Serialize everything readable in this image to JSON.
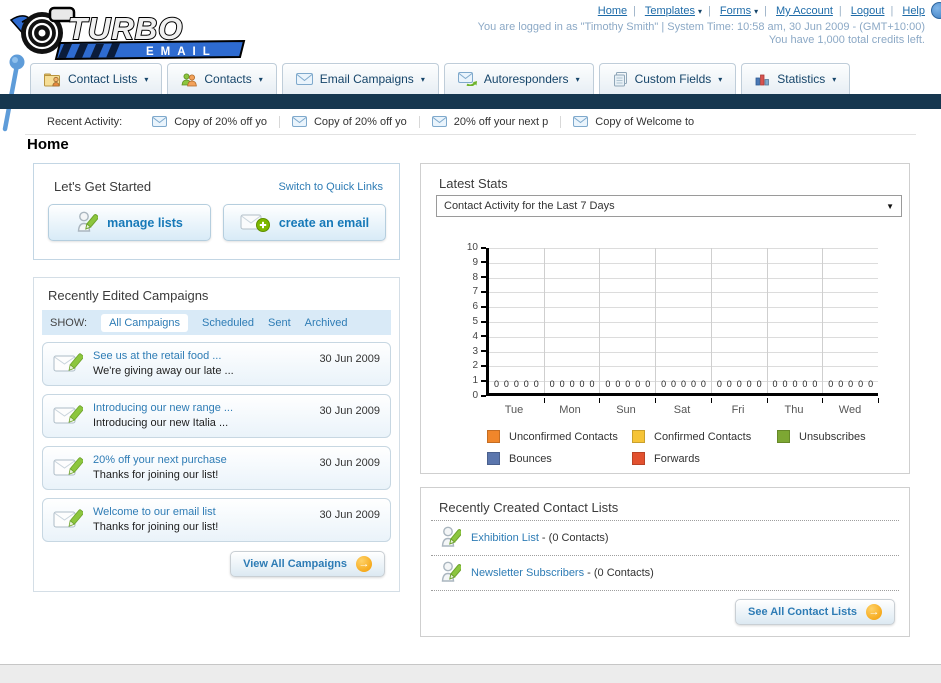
{
  "header": {
    "logo": {
      "title": "TURBO",
      "subtitle": "EMAIL"
    },
    "nav_links": [
      {
        "label": "Home",
        "dropdown": false
      },
      {
        "label": "Templates",
        "dropdown": true
      },
      {
        "label": "Forms",
        "dropdown": true
      },
      {
        "label": "My Account",
        "dropdown": false
      },
      {
        "label": "Logout",
        "dropdown": false
      },
      {
        "label": "Help",
        "dropdown": false
      }
    ],
    "login_info": "You are logged in as \"Timothy Smith\" | System Time: 10:58 am, 30 Jun 2009 - (GMT+10:00)",
    "credits_info": "You have 1,000 total credits left."
  },
  "nav": {
    "tabs": [
      {
        "label": "Contact Lists"
      },
      {
        "label": "Contacts"
      },
      {
        "label": "Email Campaigns"
      },
      {
        "label": "Autoresponders"
      },
      {
        "label": "Custom Fields"
      },
      {
        "label": "Statistics"
      }
    ]
  },
  "recent_activity": {
    "label": "Recent Activity:",
    "items": [
      {
        "label": "Copy of 20% off yo"
      },
      {
        "label": "Copy of 20% off yo"
      },
      {
        "label": "20% off your next p"
      },
      {
        "label": "Copy of Welcome to"
      }
    ]
  },
  "home_title": "Home",
  "get_started": {
    "title": "Let's Get Started",
    "switch_link": "Switch to Quick Links",
    "buttons": [
      {
        "label": "manage lists"
      },
      {
        "label": "create an email"
      }
    ]
  },
  "campaigns": {
    "title": "Recently Edited Campaigns",
    "show_label": "SHOW:",
    "filters": [
      "All Campaigns",
      "Scheduled",
      "Sent",
      "Archived"
    ],
    "active_filter": "All Campaigns",
    "items": [
      {
        "title": "See us at the retail food ...",
        "subtitle": "We're giving away our late ...",
        "date": "30 Jun 2009"
      },
      {
        "title": "Introducing our new range ...",
        "subtitle": "Introducing our new Italia ...",
        "date": "30 Jun 2009"
      },
      {
        "title": "20% off your next purchase",
        "subtitle": "Thanks for joining our list!",
        "date": "30 Jun 2009"
      },
      {
        "title": "Welcome to our email list",
        "subtitle": "Thanks for joining our list!",
        "date": "30 Jun 2009"
      }
    ],
    "view_all_label": "View All Campaigns"
  },
  "stats": {
    "title": "Latest Stats",
    "dropdown_value": "Contact Activity for the Last 7 Days"
  },
  "chart_data": {
    "type": "bar",
    "title": "Contact Activity for the Last 7 Days",
    "categories": [
      "Tue",
      "Mon",
      "Sun",
      "Sat",
      "Fri",
      "Thu",
      "Wed"
    ],
    "series": [
      {
        "name": "Unconfirmed Contacts",
        "color": "#F0862B",
        "values": [
          0,
          0,
          0,
          0,
          0,
          0,
          0
        ]
      },
      {
        "name": "Confirmed Contacts",
        "color": "#F6C437",
        "values": [
          0,
          0,
          0,
          0,
          0,
          0,
          0
        ]
      },
      {
        "name": "Unsubscribes",
        "color": "#7DA733",
        "values": [
          0,
          0,
          0,
          0,
          0,
          0,
          0
        ]
      },
      {
        "name": "Bounces",
        "color": "#5B76AD",
        "values": [
          0,
          0,
          0,
          0,
          0,
          0,
          0
        ]
      },
      {
        "name": "Forwards",
        "color": "#E2512F",
        "values": [
          0,
          0,
          0,
          0,
          0,
          0,
          0
        ]
      }
    ],
    "ylim": [
      0,
      10
    ],
    "ytick_step": 1,
    "grid": true,
    "legend_position": "bottom"
  },
  "contact_lists": {
    "title": "Recently Created Contact Lists",
    "separator": " - ",
    "items": [
      {
        "name": "Exhibition List",
        "count": "(0 Contacts)"
      },
      {
        "name": "Newsletter Subscribers",
        "count": "(0 Contacts)"
      }
    ],
    "see_all_label": "See All Contact Lists"
  },
  "colors": {
    "navbar": "#16374F",
    "link_blue": "#1E6BA8",
    "panel_link_blue": "#2E7CB5",
    "button_text_blue": "#1779B8",
    "accent_orange": "#F29A00",
    "logo_blue": "#2E6BD0"
  }
}
